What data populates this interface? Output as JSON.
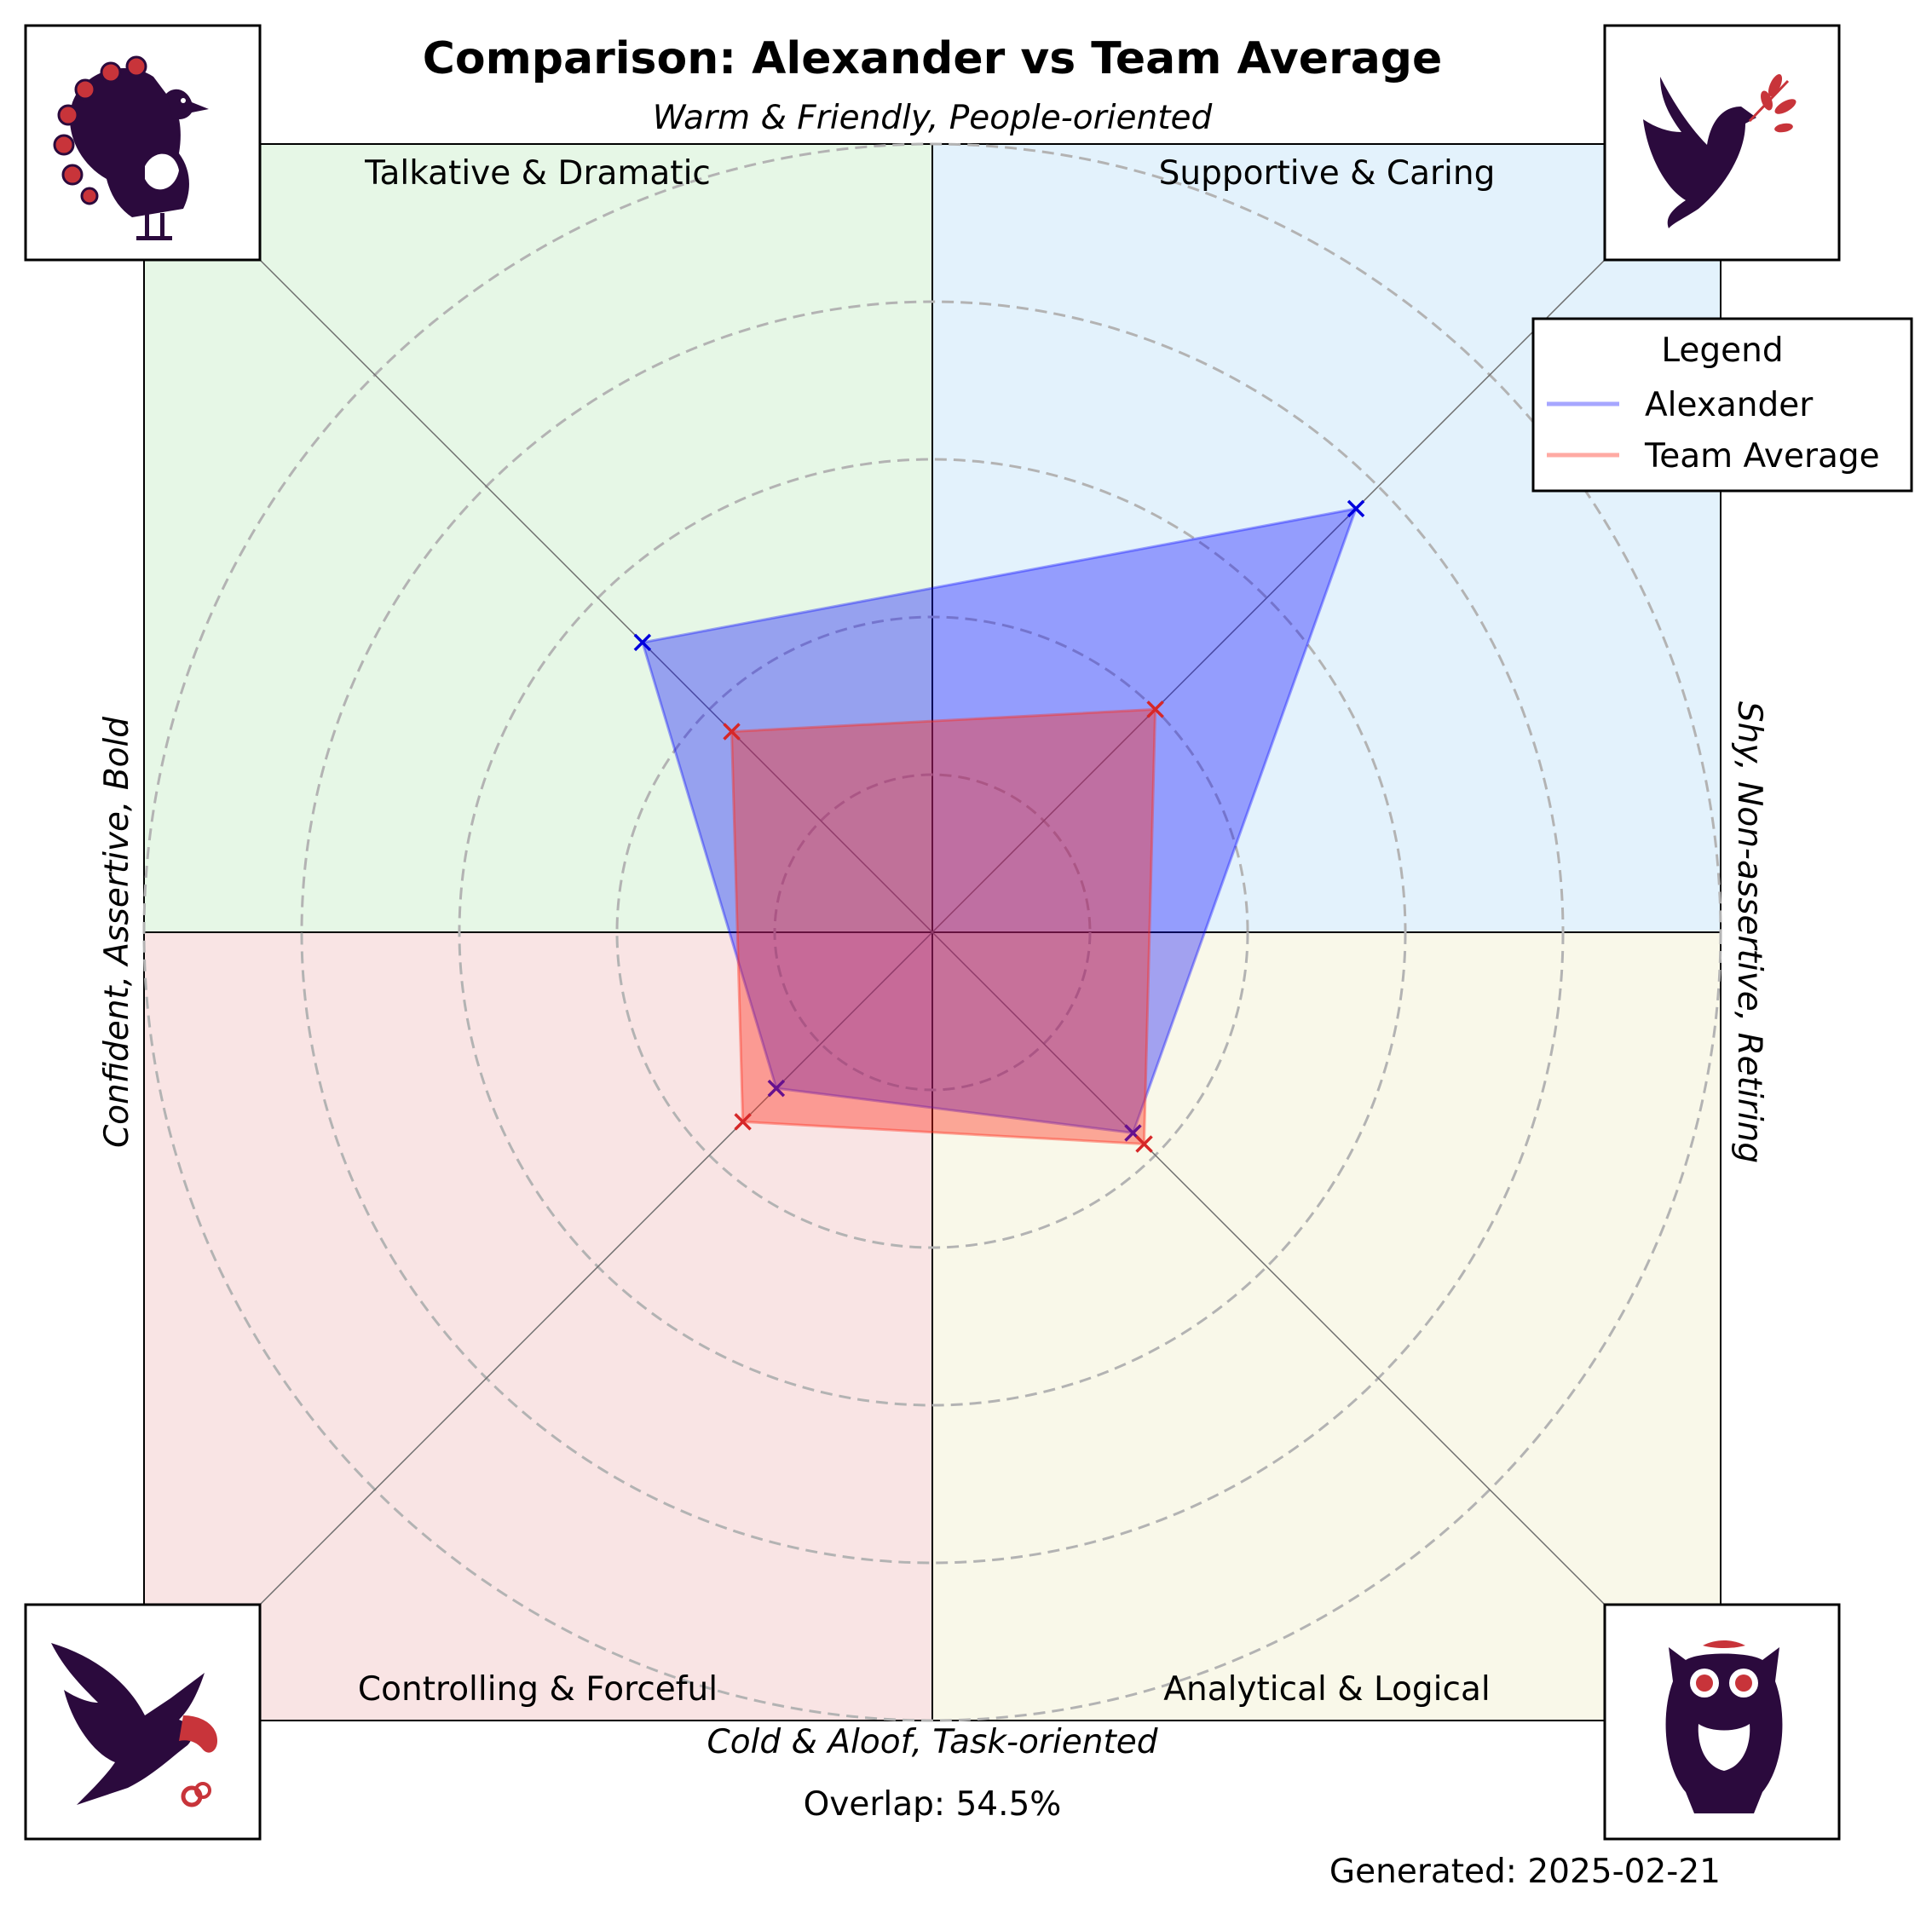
{
  "chart_data": {
    "type": "radar",
    "title": "Comparison: Alexander vs Team Average",
    "axes": {
      "top": "Warm & Friendly, People-oriented",
      "bottom": "Cold & Aloof, Task-oriented",
      "left": "Confident, Assertive, Bold",
      "right": "Shy, Non-assertive, Retiring"
    },
    "quadrants": [
      {
        "key": "tl",
        "label": "Talkative & Dramatic",
        "color": "#e6f7e6",
        "icon": "peacock-icon"
      },
      {
        "key": "tr",
        "label": "Supportive & Caring",
        "color": "#e3f2fc",
        "icon": "dove-icon"
      },
      {
        "key": "bl",
        "label": "Controlling & Forceful",
        "color": "#f9e4e4",
        "icon": "eagle-icon"
      },
      {
        "key": "br",
        "label": "Analytical & Logical",
        "color": "#f9f8e9",
        "icon": "owl-icon"
      }
    ],
    "categories": [
      "Supportive & Caring",
      "Talkative & Dramatic",
      "Controlling & Forceful",
      "Analytical & Logical"
    ],
    "rlim": [
      0,
      5
    ],
    "grid": true,
    "series": [
      {
        "name": "Alexander",
        "color": "#0000ff",
        "values": [
          3.8,
          2.6,
          1.4,
          1.8
        ]
      },
      {
        "name": "Team Average",
        "color": "#ff2a1a",
        "values": [
          2.0,
          1.8,
          1.7,
          1.9
        ]
      }
    ],
    "legend": {
      "title": "Legend",
      "placement": "top-right"
    },
    "overlap_text": "Overlap: 54.5%",
    "generated_text": "Generated: 2025-02-21"
  }
}
